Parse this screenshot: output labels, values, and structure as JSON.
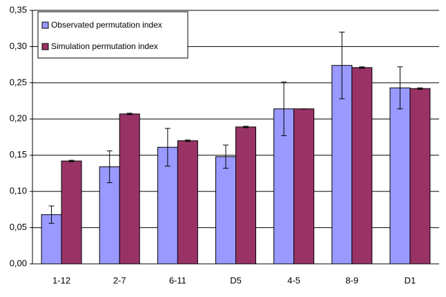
{
  "chart_data": {
    "type": "bar",
    "categories": [
      "1-12",
      "2-7",
      "6-11",
      "D5",
      "4-5",
      "8-9",
      "D1"
    ],
    "series": [
      {
        "name": "Observated permutation index",
        "color": "#9999ff",
        "values": [
          0.068,
          0.134,
          0.161,
          0.148,
          0.214,
          0.274,
          0.243
        ],
        "errors": [
          0.012,
          0.022,
          0.026,
          0.016,
          0.037,
          0.046,
          0.029
        ]
      },
      {
        "name": "Simulation permutation index",
        "color": "#993366",
        "values": [
          0.142,
          0.207,
          0.17,
          0.189,
          0.214,
          0.271,
          0.242
        ],
        "errors": [
          0.001,
          0.001,
          0.001,
          0.001,
          0,
          0.001,
          0.001
        ]
      }
    ],
    "ylim": [
      0,
      0.35
    ],
    "yticks": [
      {
        "value": 0,
        "label": "0,00"
      },
      {
        "value": 0.05,
        "label": "0,05"
      },
      {
        "value": 0.1,
        "label": "0,10"
      },
      {
        "value": 0.15,
        "label": "0,15"
      },
      {
        "value": 0.2,
        "label": "0,20"
      },
      {
        "value": 0.25,
        "label": "0,25"
      },
      {
        "value": 0.3,
        "label": "0,30"
      },
      {
        "value": 0.35,
        "label": "0,35"
      }
    ],
    "grid": true,
    "legend": "top-left"
  }
}
